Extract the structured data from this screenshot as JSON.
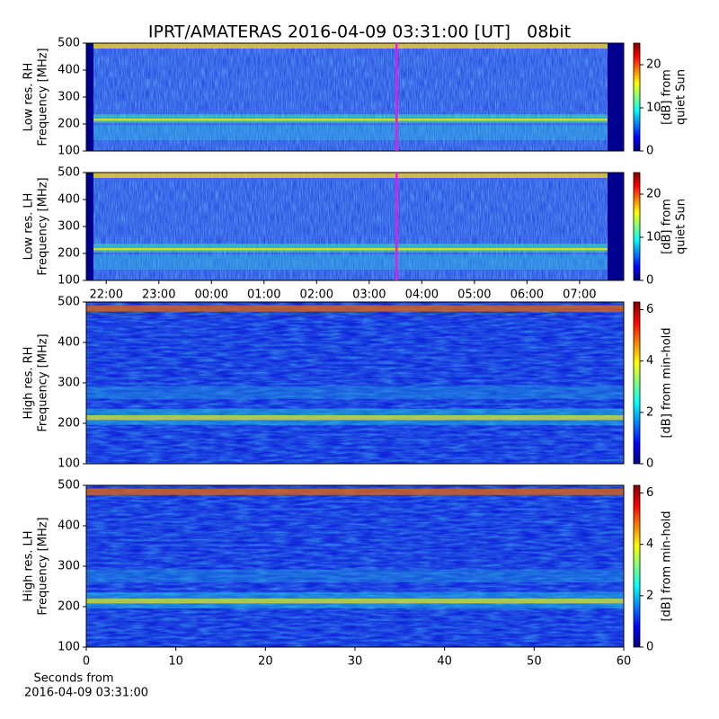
{
  "figure_title": "IPRT/AMATERAS 2016-04-09 03:31:00 [UT]   08bit",
  "chart_data": [
    {
      "type": "spectrogram",
      "ylabel": [
        "Low res. RH",
        "Frequency [MHz]"
      ],
      "ylim": [
        100,
        500
      ],
      "yticks": [
        100,
        200,
        300,
        400,
        500
      ],
      "xlim": [
        21.62,
        31.84
      ],
      "marker_x": 27.52,
      "marker_color": "#e020e0",
      "colorbar": {
        "label": [
          "[dB] from",
          "quiet Sun"
        ],
        "lim": [
          0,
          25
        ],
        "ticks": [
          0,
          10,
          20
        ],
        "colormap": "jet"
      }
    },
    {
      "type": "spectrogram",
      "ylabel": [
        "Low res. LH",
        "Frequency [MHz]"
      ],
      "ylim": [
        100,
        500
      ],
      "yticks": [
        100,
        200,
        300,
        400,
        500
      ],
      "xlim": [
        21.62,
        31.84
      ],
      "marker_x": 27.52,
      "marker_color": "#e020e0",
      "xticks": [
        {
          "value": 22,
          "label": "22:00"
        },
        {
          "value": 23,
          "label": "23:00"
        },
        {
          "value": 24,
          "label": "00:00"
        },
        {
          "value": 25,
          "label": "01:00"
        },
        {
          "value": 26,
          "label": "02:00"
        },
        {
          "value": 27,
          "label": "03:00"
        },
        {
          "value": 28,
          "label": "04:00"
        },
        {
          "value": 29,
          "label": "05:00"
        },
        {
          "value": 30,
          "label": "06:00"
        },
        {
          "value": 31,
          "label": "07:00"
        }
      ],
      "colorbar": {
        "label": [
          "[dB] from",
          "quiet Sun"
        ],
        "lim": [
          0,
          25
        ],
        "ticks": [
          0,
          10,
          20
        ],
        "colormap": "jet"
      }
    },
    {
      "type": "spectrogram",
      "ylabel": [
        "High res. RH",
        "Frequency [MHz]"
      ],
      "ylim": [
        100,
        500
      ],
      "yticks": [
        100,
        200,
        300,
        400,
        500
      ],
      "xlim": [
        0,
        60
      ],
      "colorbar": {
        "label": [
          "[dB] from min-hold"
        ],
        "lim": [
          0,
          6.3
        ],
        "ticks": [
          0,
          2,
          4,
          6
        ],
        "colormap": "jet"
      }
    },
    {
      "type": "spectrogram",
      "ylabel": [
        "High res. LH",
        "Frequency [MHz]"
      ],
      "ylim": [
        100,
        500
      ],
      "yticks": [
        100,
        200,
        300,
        400,
        500
      ],
      "xlim": [
        0,
        60
      ],
      "xticks": [
        0,
        10,
        20,
        30,
        40,
        50,
        60
      ],
      "xlabel": [
        "Seconds from",
        "2016-04-09 03:31:00"
      ],
      "colorbar": {
        "label": [
          "[dB] from min-hold"
        ],
        "lim": [
          0,
          6.3
        ],
        "ticks": [
          0,
          2,
          4,
          6
        ],
        "colormap": "jet"
      }
    }
  ]
}
